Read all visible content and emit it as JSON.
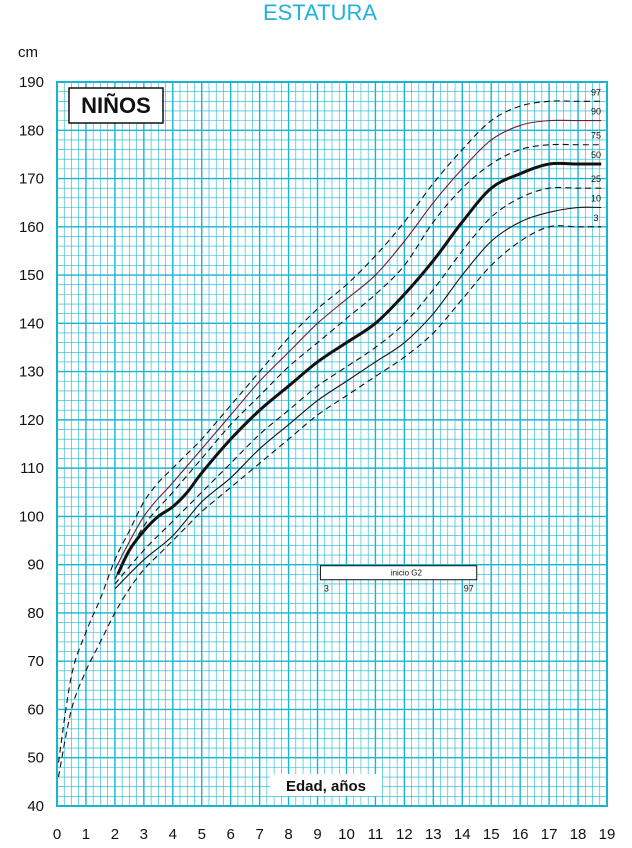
{
  "chart_data": {
    "type": "line",
    "title": "ESTATURA",
    "panel_label": "NIÑOS",
    "ylabel": "cm",
    "xlabel": "Edad, años",
    "xlim": [
      0,
      19
    ],
    "ylim": [
      40,
      190
    ],
    "x_ticks": [
      0,
      1,
      2,
      3,
      4,
      5,
      6,
      7,
      8,
      9,
      10,
      11,
      12,
      13,
      14,
      15,
      16,
      17,
      18,
      19
    ],
    "y_ticks": [
      40,
      50,
      60,
      70,
      80,
      90,
      100,
      110,
      120,
      130,
      140,
      150,
      160,
      170,
      180,
      190
    ],
    "grid": true,
    "colors": {
      "grid": "#18b4d2",
      "title": "#22b1dc",
      "curve": "#111111",
      "curve_90": "#7a1a2a"
    },
    "series": [
      {
        "name": "97",
        "style": "dashed",
        "x": [
          0.05,
          0.5,
          1,
          1.5,
          2,
          2.5,
          3,
          3.5,
          4,
          4.5,
          5,
          6,
          7,
          8,
          9,
          10,
          11,
          12,
          13,
          14,
          15,
          16,
          17,
          18,
          18.8
        ],
        "y": [
          49,
          67,
          76,
          83,
          91,
          97,
          103,
          107,
          110,
          113,
          116,
          123,
          130,
          137,
          143,
          148,
          154,
          161,
          169,
          176,
          182,
          185,
          186,
          186,
          186
        ]
      },
      {
        "name": "90",
        "style": "solid",
        "color_key": "curve_90",
        "x": [
          2,
          3,
          4,
          5,
          6,
          7,
          8,
          9,
          10,
          11,
          12,
          13,
          14,
          15,
          16,
          17,
          18,
          18.8
        ],
        "y": [
          89,
          100,
          107,
          114,
          121,
          128,
          134,
          140,
          145,
          150,
          157,
          165,
          172,
          178,
          181,
          182,
          182,
          182
        ]
      },
      {
        "name": "75",
        "style": "dashed",
        "x": [
          2,
          3,
          4,
          5,
          6,
          7,
          8,
          9,
          10,
          11,
          12,
          13,
          14,
          15,
          16,
          17,
          18,
          18.8
        ],
        "y": [
          87,
          98,
          105,
          112,
          119,
          125,
          131,
          136,
          141,
          146,
          152,
          161,
          168,
          173,
          176,
          177,
          177,
          177
        ]
      },
      {
        "name": "50",
        "style": "bold",
        "x": [
          2.1,
          2.5,
          3,
          3.5,
          4,
          4.5,
          5,
          6,
          7,
          8,
          9,
          10,
          11,
          12,
          13,
          14,
          15,
          16,
          17,
          18,
          18.8
        ],
        "y": [
          88,
          93,
          97,
          100,
          102,
          105,
          109,
          116,
          122,
          127,
          132,
          136,
          140,
          146,
          153,
          161,
          168,
          171,
          173,
          173,
          173
        ]
      },
      {
        "name": "25",
        "style": "dashed",
        "x": [
          2,
          3,
          4,
          5,
          6,
          7,
          8,
          9,
          10,
          11,
          12,
          13,
          14,
          15,
          16,
          17,
          18,
          18.8
        ],
        "y": [
          86,
          93,
          99,
          105,
          111,
          117,
          122,
          127,
          131,
          135,
          140,
          147,
          155,
          162,
          166,
          168,
          168,
          168
        ]
      },
      {
        "name": "10",
        "style": "solid",
        "x": [
          2,
          3,
          4,
          5,
          6,
          7,
          8,
          9,
          10,
          11,
          12,
          13,
          14,
          15,
          16,
          17,
          18,
          18.8
        ],
        "y": [
          85,
          91,
          96,
          103,
          108,
          114,
          119,
          124,
          128,
          132,
          136,
          142,
          150,
          157,
          161,
          163,
          164,
          164
        ]
      },
      {
        "name": "3",
        "style": "dashed",
        "x": [
          0.05,
          0.5,
          1,
          1.5,
          2,
          2.5,
          3,
          3.5,
          4,
          4.5,
          5,
          6,
          7,
          8,
          9,
          10,
          11,
          12,
          13,
          14,
          15,
          16,
          17,
          18,
          18.8
        ],
        "y": [
          46,
          60,
          68,
          74,
          80,
          85,
          89,
          92,
          95,
          98,
          101,
          106,
          111,
          116,
          121,
          125,
          129,
          133,
          138,
          145,
          152,
          157,
          160,
          160,
          160
        ]
      }
    ],
    "annotation": {
      "label": "inicio G2",
      "x_start": 9.1,
      "x_end": 14.5,
      "y": 87.5,
      "start_label": "3",
      "end_label": "97"
    }
  }
}
